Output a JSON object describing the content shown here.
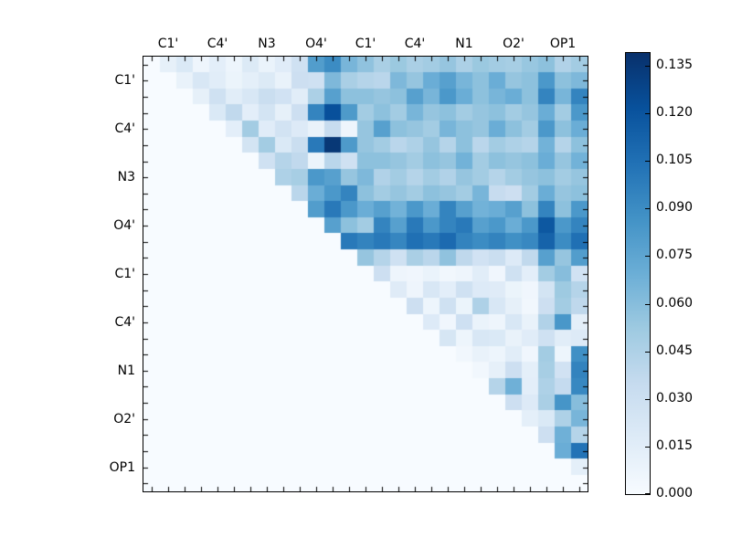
{
  "figure": {
    "background": "#ffffff"
  },
  "chart_data": {
    "type": "heatmap",
    "title": "",
    "xlabel": "",
    "ylabel": "",
    "matrix_size": 27,
    "cells_per_label_group": 3,
    "top_axis_labels": [
      "C1'",
      "C4'",
      "N3",
      "O4'",
      "C1'",
      "C4'",
      "N1",
      "O2'",
      "OP1"
    ],
    "left_axis_labels": [
      "C1'",
      "C4'",
      "N3",
      "O4'",
      "C1'",
      "C4'",
      "N1",
      "O2'",
      "OP1"
    ],
    "label_cell_positions": [
      1,
      4,
      7,
      10,
      13,
      16,
      19,
      22,
      25
    ],
    "grid": false,
    "colormap": "Blues",
    "colormap_anchors": [
      "#f7fbff",
      "#deebf7",
      "#c6dbef",
      "#9ecae1",
      "#6baed6",
      "#4292c6",
      "#2171b5",
      "#08519c",
      "#08306b"
    ],
    "vmin": 0.0,
    "vmax": 0.139,
    "colorbar": {
      "position": "right",
      "tick_labels": [
        "0.000",
        "0.015",
        "0.030",
        "0.045",
        "0.060",
        "0.075",
        "0.090",
        "0.105",
        "0.120",
        "0.135"
      ],
      "tick_values": [
        0.0,
        0.015,
        0.03,
        0.045,
        0.06,
        0.075,
        0.09,
        0.105,
        0.12,
        0.135
      ]
    },
    "matrix": [
      [
        0,
        0.012,
        0.02,
        0.006,
        0.014,
        0.007,
        0.019,
        0.009,
        0.016,
        0.028,
        0.08,
        0.09,
        0.065,
        0.057,
        0.047,
        0.053,
        0.047,
        0.05,
        0.055,
        0.046,
        0.053,
        0.05,
        0.048,
        0.054,
        0.058,
        0.044,
        0.05
      ],
      [
        0,
        0,
        0.01,
        0.022,
        0.015,
        0.008,
        0.013,
        0.019,
        0.01,
        0.03,
        0.028,
        0.063,
        0.047,
        0.042,
        0.04,
        0.063,
        0.055,
        0.07,
        0.078,
        0.065,
        0.058,
        0.07,
        0.055,
        0.058,
        0.083,
        0.058,
        0.063
      ],
      [
        0,
        0,
        0,
        0.012,
        0.028,
        0.015,
        0.022,
        0.032,
        0.027,
        0.015,
        0.046,
        0.078,
        0.058,
        0.058,
        0.055,
        0.058,
        0.078,
        0.065,
        0.083,
        0.07,
        0.058,
        0.065,
        0.07,
        0.058,
        0.094,
        0.065,
        0.094
      ],
      [
        0,
        0,
        0,
        0,
        0.02,
        0.037,
        0.014,
        0.025,
        0.012,
        0.03,
        0.094,
        0.122,
        0.082,
        0.05,
        0.058,
        0.05,
        0.065,
        0.055,
        0.058,
        0.05,
        0.055,
        0.058,
        0.05,
        0.055,
        0.07,
        0.05,
        0.083
      ],
      [
        0,
        0,
        0,
        0,
        0,
        0.014,
        0.05,
        0.016,
        0.026,
        0.018,
        0.01,
        0.034,
        0.006,
        0.055,
        0.078,
        0.058,
        0.055,
        0.05,
        0.065,
        0.058,
        0.055,
        0.07,
        0.058,
        0.05,
        0.083,
        0.058,
        0.07
      ],
      [
        0,
        0,
        0,
        0,
        0,
        0,
        0.025,
        0.05,
        0.02,
        0.032,
        0.1,
        0.135,
        0.082,
        0.055,
        0.05,
        0.04,
        0.045,
        0.055,
        0.042,
        0.058,
        0.04,
        0.05,
        0.045,
        0.042,
        0.067,
        0.042,
        0.058
      ],
      [
        0,
        0,
        0,
        0,
        0,
        0,
        0,
        0.028,
        0.042,
        0.037,
        0.008,
        0.04,
        0.028,
        0.058,
        0.058,
        0.055,
        0.05,
        0.058,
        0.055,
        0.067,
        0.05,
        0.058,
        0.055,
        0.058,
        0.07,
        0.055,
        0.067
      ],
      [
        0,
        0,
        0,
        0,
        0,
        0,
        0,
        0,
        0.045,
        0.048,
        0.083,
        0.078,
        0.055,
        0.063,
        0.044,
        0.05,
        0.042,
        0.05,
        0.044,
        0.055,
        0.05,
        0.042,
        0.05,
        0.055,
        0.058,
        0.05,
        0.055
      ],
      [
        0,
        0,
        0,
        0,
        0,
        0,
        0,
        0,
        0,
        0.04,
        0.07,
        0.083,
        0.094,
        0.058,
        0.05,
        0.055,
        0.05,
        0.058,
        0.055,
        0.05,
        0.065,
        0.034,
        0.03,
        0.05,
        0.07,
        0.055,
        0.058
      ],
      [
        0,
        0,
        0,
        0,
        0,
        0,
        0,
        0,
        0,
        0,
        0.08,
        0.1,
        0.083,
        0.07,
        0.078,
        0.067,
        0.083,
        0.07,
        0.094,
        0.078,
        0.067,
        0.07,
        0.078,
        0.058,
        0.094,
        0.058,
        0.083
      ],
      [
        0,
        0,
        0,
        0,
        0,
        0,
        0,
        0,
        0,
        0,
        0,
        0.078,
        0.058,
        0.05,
        0.094,
        0.078,
        0.1,
        0.083,
        0.094,
        0.1,
        0.078,
        0.083,
        0.07,
        0.083,
        0.118,
        0.083,
        0.094
      ],
      [
        0,
        0,
        0,
        0,
        0,
        0,
        0,
        0,
        0,
        0,
        0,
        0,
        0.1,
        0.095,
        0.1,
        0.093,
        0.105,
        0.1,
        0.108,
        0.095,
        0.09,
        0.095,
        0.088,
        0.092,
        0.112,
        0.09,
        0.105
      ],
      [
        0,
        0,
        0,
        0,
        0,
        0,
        0,
        0,
        0,
        0,
        0,
        0,
        0,
        0.055,
        0.042,
        0.028,
        0.047,
        0.04,
        0.057,
        0.038,
        0.027,
        0.032,
        0.018,
        0.037,
        0.078,
        0.055,
        0.08
      ],
      [
        0,
        0,
        0,
        0,
        0,
        0,
        0,
        0,
        0,
        0,
        0,
        0,
        0,
        0,
        0.03,
        0.006,
        0.005,
        0.009,
        0.004,
        0.006,
        0.015,
        0.005,
        0.028,
        0.014,
        0.05,
        0.06,
        0.027
      ],
      [
        0,
        0,
        0,
        0,
        0,
        0,
        0,
        0,
        0,
        0,
        0,
        0,
        0,
        0,
        0,
        0.017,
        0.006,
        0.022,
        0.014,
        0.028,
        0.018,
        0.017,
        0.008,
        0.005,
        0.025,
        0.052,
        0.042
      ],
      [
        0,
        0,
        0,
        0,
        0,
        0,
        0,
        0,
        0,
        0,
        0,
        0,
        0,
        0,
        0,
        0,
        0.03,
        0.007,
        0.028,
        0.008,
        0.045,
        0.022,
        0.012,
        0.004,
        0.03,
        0.05,
        0.038
      ],
      [
        0,
        0,
        0,
        0,
        0,
        0,
        0,
        0,
        0,
        0,
        0,
        0,
        0,
        0,
        0,
        0,
        0,
        0.018,
        0.005,
        0.029,
        0.009,
        0.006,
        0.022,
        0.01,
        0.044,
        0.084,
        0.013
      ],
      [
        0,
        0,
        0,
        0,
        0,
        0,
        0,
        0,
        0,
        0,
        0,
        0,
        0,
        0,
        0,
        0,
        0,
        0,
        0.023,
        0.007,
        0.022,
        0.02,
        0.01,
        0.016,
        0.028,
        0.015,
        0.018
      ],
      [
        0,
        0,
        0,
        0,
        0,
        0,
        0,
        0,
        0,
        0,
        0,
        0,
        0,
        0,
        0,
        0,
        0,
        0,
        0,
        0.004,
        0.01,
        0.007,
        0.015,
        0.005,
        0.05,
        0.007,
        0.088
      ],
      [
        0,
        0,
        0,
        0,
        0,
        0,
        0,
        0,
        0,
        0,
        0,
        0,
        0,
        0,
        0,
        0,
        0,
        0,
        0,
        0,
        0.004,
        0.012,
        0.03,
        0.013,
        0.048,
        0.027,
        0.095
      ],
      [
        0,
        0,
        0,
        0,
        0,
        0,
        0,
        0,
        0,
        0,
        0,
        0,
        0,
        0,
        0,
        0,
        0,
        0,
        0,
        0,
        0,
        0.042,
        0.068,
        0.014,
        0.045,
        0.035,
        0.092
      ],
      [
        0,
        0,
        0,
        0,
        0,
        0,
        0,
        0,
        0,
        0,
        0,
        0,
        0,
        0,
        0,
        0,
        0,
        0,
        0,
        0,
        0,
        0,
        0.03,
        0.018,
        0.047,
        0.085,
        0.06
      ],
      [
        0,
        0,
        0,
        0,
        0,
        0,
        0,
        0,
        0,
        0,
        0,
        0,
        0,
        0,
        0,
        0,
        0,
        0,
        0,
        0,
        0,
        0,
        0,
        0.013,
        0.02,
        0.045,
        0.065
      ],
      [
        0,
        0,
        0,
        0,
        0,
        0,
        0,
        0,
        0,
        0,
        0,
        0,
        0,
        0,
        0,
        0,
        0,
        0,
        0,
        0,
        0,
        0,
        0,
        0,
        0.03,
        0.068,
        0.042
      ],
      [
        0,
        0,
        0,
        0,
        0,
        0,
        0,
        0,
        0,
        0,
        0,
        0,
        0,
        0,
        0,
        0,
        0,
        0,
        0,
        0,
        0,
        0,
        0,
        0,
        0,
        0.07,
        0.103
      ],
      [
        0,
        0,
        0,
        0,
        0,
        0,
        0,
        0,
        0,
        0,
        0,
        0,
        0,
        0,
        0,
        0,
        0,
        0,
        0,
        0,
        0,
        0,
        0,
        0,
        0,
        0,
        0.013
      ],
      [
        0,
        0,
        0,
        0,
        0,
        0,
        0,
        0,
        0,
        0,
        0,
        0,
        0,
        0,
        0,
        0,
        0,
        0,
        0,
        0,
        0,
        0,
        0,
        0,
        0,
        0,
        0
      ]
    ]
  }
}
